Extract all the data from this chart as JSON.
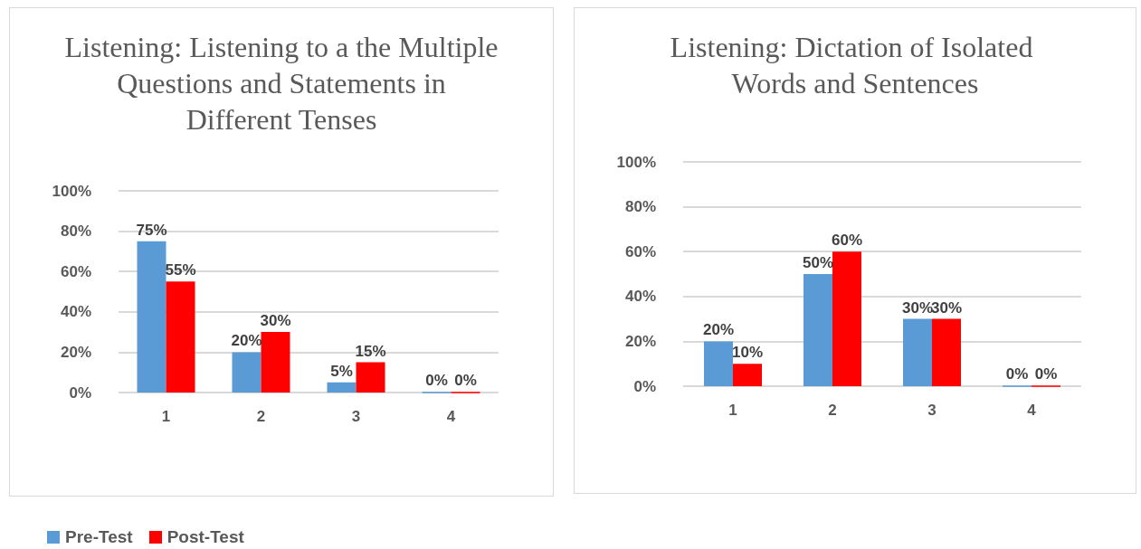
{
  "chart_data": [
    {
      "type": "bar",
      "title": "Listening: Listening to a the Multiple Questions and Statements in Different Tenses",
      "categories": [
        "1",
        "2",
        "3",
        "4"
      ],
      "series": [
        {
          "name": "Pre-Test",
          "color": "#5b9bd5",
          "values": [
            75,
            20,
            5,
            0
          ],
          "value_labels": [
            "75%",
            "20%",
            "5%",
            "0%"
          ]
        },
        {
          "name": "Post-Test",
          "color": "#ff0000",
          "values": [
            55,
            30,
            15,
            0
          ],
          "value_labels": [
            "55%",
            "30%",
            "15%",
            "0%"
          ]
        }
      ],
      "ylim": [
        0,
        100
      ],
      "yticks": [
        {
          "value": 0,
          "label": "0%"
        },
        {
          "value": 20,
          "label": "20%"
        },
        {
          "value": 40,
          "label": "40%"
        },
        {
          "value": 60,
          "label": "60%"
        },
        {
          "value": 80,
          "label": "80%"
        },
        {
          "value": 100,
          "label": "100%"
        }
      ],
      "grid": "y",
      "legend": "bottom"
    },
    {
      "type": "bar",
      "title": "Listening: Dictation of Isolated Words and Sentences",
      "categories": [
        "1",
        "2",
        "3",
        "4"
      ],
      "series": [
        {
          "color": "#5b9bd5",
          "values": [
            20,
            50,
            30,
            0
          ],
          "value_labels": [
            "20%",
            "50%",
            "30%",
            "0%"
          ]
        },
        {
          "color": "#ff0000",
          "values": [
            10,
            60,
            30,
            0
          ],
          "value_labels": [
            "10%",
            "60%",
            "30%",
            "0%"
          ]
        }
      ],
      "ylim": [
        0,
        100
      ],
      "yticks": [
        {
          "value": 0,
          "label": "0%"
        },
        {
          "value": 20,
          "label": "20%"
        },
        {
          "value": 40,
          "label": "40%"
        },
        {
          "value": 60,
          "label": "60%"
        },
        {
          "value": 80,
          "label": "80%"
        },
        {
          "value": 100,
          "label": "100%"
        }
      ],
      "grid": "y"
    }
  ]
}
